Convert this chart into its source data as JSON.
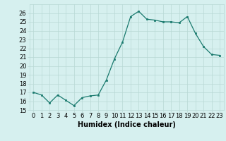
{
  "x": [
    0,
    1,
    2,
    3,
    4,
    5,
    6,
    7,
    8,
    9,
    10,
    11,
    12,
    13,
    14,
    15,
    16,
    17,
    18,
    19,
    20,
    21,
    22,
    23
  ],
  "y": [
    17.0,
    16.7,
    15.8,
    16.7,
    16.1,
    15.5,
    16.4,
    16.6,
    16.7,
    18.4,
    20.8,
    22.7,
    25.6,
    26.2,
    25.3,
    25.2,
    25.0,
    25.0,
    24.9,
    25.6,
    23.7,
    22.2,
    21.3,
    21.2
  ],
  "line_color": "#1a7a6e",
  "marker_color": "#1a7a6e",
  "bg_color": "#d6f0ef",
  "grid_color": "#b8d8d5",
  "xlabel": "Humidex (Indice chaleur)",
  "ylim": [
    15,
    27
  ],
  "xlim": [
    -0.5,
    23.5
  ],
  "yticks": [
    15,
    16,
    17,
    18,
    19,
    20,
    21,
    22,
    23,
    24,
    25,
    26
  ],
  "xticks": [
    0,
    1,
    2,
    3,
    4,
    5,
    6,
    7,
    8,
    9,
    10,
    11,
    12,
    13,
    14,
    15,
    16,
    17,
    18,
    19,
    20,
    21,
    22,
    23
  ],
  "axis_fontsize": 6.5,
  "tick_fontsize": 6.0,
  "xlabel_fontsize": 7.0
}
